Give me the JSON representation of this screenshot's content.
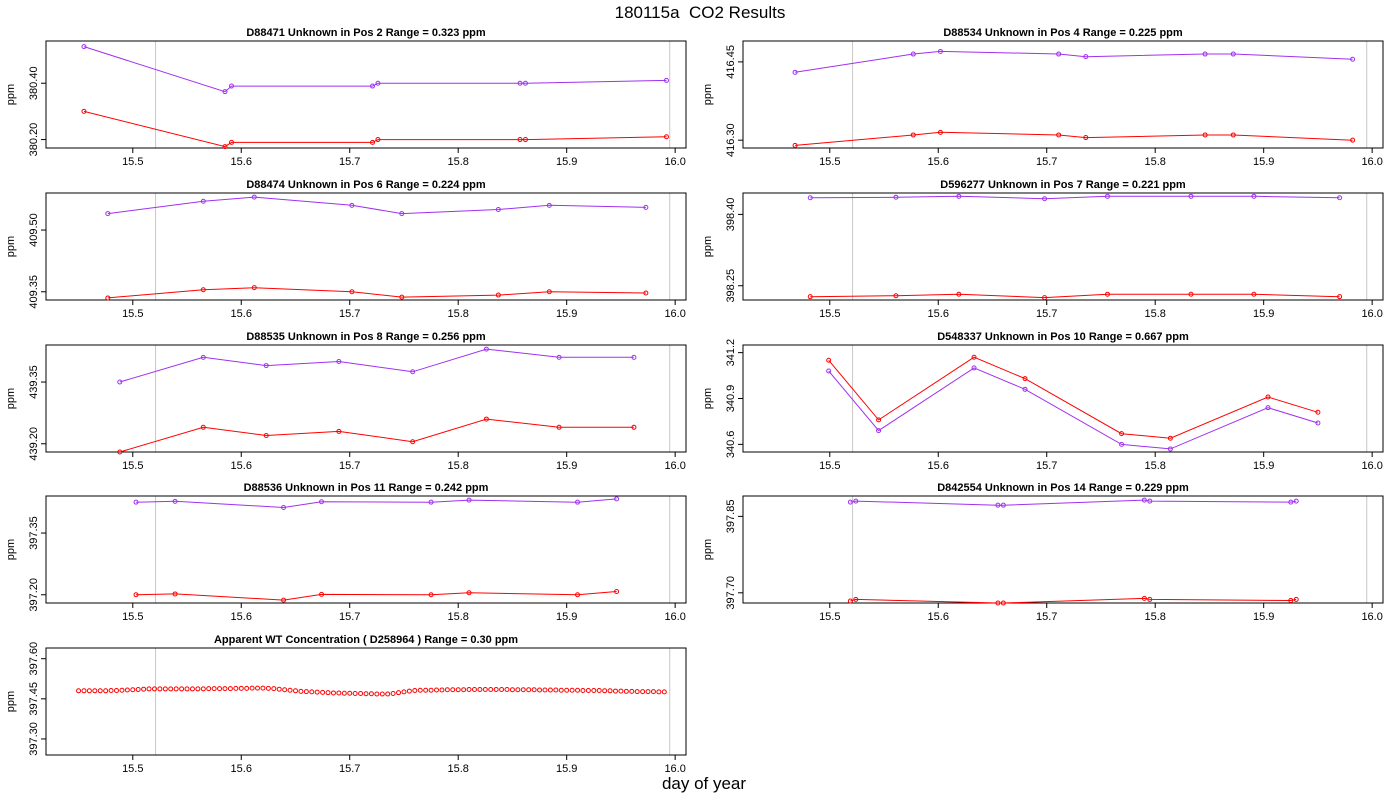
{
  "title": "180115a  CO2 Results",
  "xlabel": "day of year",
  "colors": {
    "upper": "#a030f0",
    "lower": "#ff0000",
    "ref": "#c8c8c8"
  },
  "chart_data": [
    {
      "type": "line",
      "title": "D88471    Unknown in Pos 2         Range =  0.323 ppm",
      "ylabel": "ppm",
      "xlim": [
        15.42,
        16.01
      ],
      "ylim": [
        380.17,
        380.55
      ],
      "xticks": [
        15.5,
        15.6,
        15.7,
        15.8,
        15.9,
        16.0
      ],
      "yticks": [
        380.2,
        380.4
      ],
      "ytick_labels": [
        "380.20",
        "380.40"
      ],
      "ref_lines": [
        15.521,
        15.995
      ],
      "series": [
        {
          "color": "upper",
          "x": [
            15.455,
            15.585,
            15.591,
            15.721,
            15.726,
            15.857,
            15.862,
            15.992
          ],
          "y": [
            380.53,
            380.37,
            380.39,
            380.39,
            380.4,
            380.4,
            380.4,
            380.41
          ]
        },
        {
          "color": "lower",
          "x": [
            15.455,
            15.585,
            15.591,
            15.721,
            15.726,
            15.857,
            15.862,
            15.992
          ],
          "y": [
            380.3,
            380.175,
            380.19,
            380.19,
            380.2,
            380.2,
            380.2,
            380.21
          ]
        }
      ]
    },
    {
      "type": "line",
      "title": "D88534    Unknown in Pos 4         Range =  0.225 ppm",
      "ylabel": "ppm",
      "xlim": [
        15.42,
        16.01
      ],
      "ylim": [
        416.285,
        416.49
      ],
      "xticks": [
        15.5,
        15.6,
        15.7,
        15.8,
        15.9,
        16.0
      ],
      "yticks": [
        416.3,
        416.45
      ],
      "ytick_labels": [
        "416.30",
        "416.45"
      ],
      "ref_lines": [
        15.521,
        15.995
      ],
      "series": [
        {
          "color": "upper",
          "x": [
            15.468,
            15.577,
            15.602,
            15.711,
            15.736,
            15.846,
            15.872,
            15.982
          ],
          "y": [
            416.43,
            416.465,
            416.47,
            416.465,
            416.46,
            416.465,
            416.465,
            416.455
          ]
        },
        {
          "color": "lower",
          "x": [
            15.468,
            15.577,
            15.602,
            15.711,
            15.736,
            15.846,
            15.872,
            15.982
          ],
          "y": [
            416.29,
            416.31,
            416.315,
            416.31,
            416.305,
            416.31,
            416.31,
            416.3
          ]
        }
      ]
    },
    {
      "type": "line",
      "title": "D88474    Unknown in Pos 6         Range =  0.224 ppm",
      "ylabel": "ppm",
      "xlim": [
        15.42,
        16.01
      ],
      "ylim": [
        409.33,
        409.59
      ],
      "xticks": [
        15.5,
        15.6,
        15.7,
        15.8,
        15.9,
        16.0
      ],
      "yticks": [
        409.35,
        409.5
      ],
      "ytick_labels": [
        "409.35",
        "409.50"
      ],
      "ref_lines": [
        15.521,
        15.995
      ],
      "series": [
        {
          "color": "upper",
          "x": [
            15.477,
            15.565,
            15.612,
            15.702,
            15.748,
            15.837,
            15.884,
            15.973
          ],
          "y": [
            409.54,
            409.57,
            409.58,
            409.56,
            409.54,
            409.55,
            409.56,
            409.555
          ]
        },
        {
          "color": "lower",
          "x": [
            15.477,
            15.565,
            15.612,
            15.702,
            15.748,
            15.837,
            15.884,
            15.973
          ],
          "y": [
            409.335,
            409.355,
            409.36,
            409.35,
            409.337,
            409.342,
            409.35,
            409.347
          ]
        }
      ]
    },
    {
      "type": "line",
      "title": "D596277    Unknown in Pos 7         Range =  0.221 ppm",
      "ylabel": "ppm",
      "xlim": [
        15.42,
        16.01
      ],
      "ylim": [
        398.22,
        398.445
      ],
      "xticks": [
        15.5,
        15.6,
        15.7,
        15.8,
        15.9,
        16.0
      ],
      "yticks": [
        398.25,
        398.4
      ],
      "ytick_labels": [
        "398.25",
        "398.40"
      ],
      "ref_lines": [
        15.521,
        15.995
      ],
      "series": [
        {
          "color": "upper",
          "x": [
            15.482,
            15.561,
            15.619,
            15.698,
            15.756,
            15.833,
            15.891,
            15.97
          ],
          "y": [
            398.435,
            398.436,
            398.438,
            398.433,
            398.438,
            398.438,
            398.438,
            398.435
          ]
        },
        {
          "color": "lower",
          "x": [
            15.482,
            15.561,
            15.619,
            15.698,
            15.756,
            15.833,
            15.891,
            15.97
          ],
          "y": [
            398.227,
            398.229,
            398.232,
            398.225,
            398.232,
            398.232,
            398.232,
            398.227
          ]
        }
      ]
    },
    {
      "type": "line",
      "title": "D88535    Unknown in Pos 8         Range =  0.256 ppm",
      "ylabel": "ppm",
      "xlim": [
        15.42,
        16.01
      ],
      "ylim": [
        439.18,
        439.44
      ],
      "xticks": [
        15.5,
        15.6,
        15.7,
        15.8,
        15.9,
        16.0
      ],
      "yticks": [
        439.2,
        439.35
      ],
      "ytick_labels": [
        "439.20",
        "439.35"
      ],
      "ref_lines": [
        15.521,
        15.995
      ],
      "series": [
        {
          "color": "upper",
          "x": [
            15.488,
            15.565,
            15.623,
            15.69,
            15.758,
            15.826,
            15.893,
            15.962
          ],
          "y": [
            439.35,
            439.41,
            439.39,
            439.4,
            439.375,
            439.43,
            439.41,
            439.41
          ]
        },
        {
          "color": "lower",
          "x": [
            15.488,
            15.565,
            15.623,
            15.69,
            15.758,
            15.826,
            15.893,
            15.962
          ],
          "y": [
            439.18,
            439.24,
            439.22,
            439.23,
            439.205,
            439.26,
            439.24,
            439.24
          ]
        }
      ]
    },
    {
      "type": "line",
      "title": "D548337    Unknown in Pos 10         Range =  0.667 ppm",
      "ylabel": "ppm",
      "xlim": [
        15.42,
        16.01
      ],
      "ylim": [
        340.55,
        341.25
      ],
      "xticks": [
        15.5,
        15.6,
        15.7,
        15.8,
        15.9,
        16.0
      ],
      "yticks": [
        340.6,
        340.9,
        341.2
      ],
      "ytick_labels": [
        "340.6",
        "340.9",
        "341.2"
      ],
      "ref_lines": [
        15.521,
        15.995
      ],
      "series": [
        {
          "color": "upper",
          "x": [
            15.499,
            15.545,
            15.633,
            15.68,
            15.769,
            15.814,
            15.904,
            15.95
          ],
          "y": [
            341.08,
            340.69,
            341.1,
            340.96,
            340.6,
            340.57,
            340.84,
            340.74
          ]
        },
        {
          "color": "lower",
          "x": [
            15.499,
            15.545,
            15.633,
            15.68,
            15.769,
            15.814,
            15.904,
            15.95
          ],
          "y": [
            341.15,
            340.76,
            341.17,
            341.03,
            340.67,
            340.64,
            340.91,
            340.81
          ]
        }
      ]
    },
    {
      "type": "line",
      "title": "D88536    Unknown in Pos 11         Range =  0.242 ppm",
      "ylabel": "ppm",
      "xlim": [
        15.42,
        16.01
      ],
      "ylim": [
        397.18,
        397.44
      ],
      "xticks": [
        15.5,
        15.6,
        15.7,
        15.8,
        15.9,
        16.0
      ],
      "yticks": [
        397.2,
        397.35
      ],
      "ytick_labels": [
        "397.20",
        "397.35"
      ],
      "ref_lines": [
        15.521,
        15.995
      ],
      "series": [
        {
          "color": "upper",
          "x": [
            15.503,
            15.539,
            15.639,
            15.674,
            15.775,
            15.81,
            15.91,
            15.946
          ],
          "y": [
            397.425,
            397.427,
            397.412,
            397.426,
            397.425,
            397.43,
            397.425,
            397.433
          ]
        },
        {
          "color": "lower",
          "x": [
            15.503,
            15.539,
            15.639,
            15.674,
            15.775,
            15.81,
            15.91,
            15.946
          ],
          "y": [
            397.2,
            397.202,
            397.187,
            397.201,
            397.2,
            397.205,
            397.2,
            397.208
          ]
        }
      ]
    },
    {
      "type": "line",
      "title": "D842554    Unknown in Pos 14         Range =  0.229 ppm",
      "ylabel": "ppm",
      "xlim": [
        15.42,
        16.01
      ],
      "ylim": [
        397.68,
        397.89
      ],
      "xticks": [
        15.5,
        15.6,
        15.7,
        15.8,
        15.9,
        16.0
      ],
      "yticks": [
        397.7,
        397.85
      ],
      "ytick_labels": [
        "397.70",
        "397.85"
      ],
      "ref_lines": [
        15.521,
        15.995
      ],
      "series": [
        {
          "color": "upper",
          "x": [
            15.519,
            15.524,
            15.655,
            15.66,
            15.79,
            15.795,
            15.925,
            15.93
          ],
          "y": [
            397.878,
            397.88,
            397.872,
            397.872,
            397.882,
            397.88,
            397.878,
            397.88
          ]
        },
        {
          "color": "lower",
          "x": [
            15.519,
            15.524,
            15.655,
            15.66,
            15.79,
            15.795,
            15.925,
            15.93
          ],
          "y": [
            397.684,
            397.687,
            397.68,
            397.68,
            397.689,
            397.687,
            397.685,
            397.687
          ]
        }
      ]
    },
    {
      "type": "scatter",
      "title": "Apparent WT Concentration ( D258964 )         Range = 0.30 ppm",
      "ylabel": "ppm",
      "xlim": [
        15.42,
        16.01
      ],
      "ylim": [
        397.24,
        397.64
      ],
      "xticks": [
        15.5,
        15.6,
        15.7,
        15.8,
        15.9,
        16.0
      ],
      "yticks": [
        397.3,
        397.45,
        397.6
      ],
      "ytick_labels": [
        "397.30",
        "397.45",
        "397.60"
      ],
      "ref_lines": [
        15.521,
        15.995
      ],
      "wt_series": {
        "color": "lower",
        "x_start": 15.45,
        "x_step": 0.005,
        "count": 109,
        "y": [
          397.48,
          397.48,
          397.48,
          397.48,
          397.48,
          397.48,
          397.481,
          397.481,
          397.482,
          397.483,
          397.484,
          397.485,
          397.486,
          397.487,
          397.487,
          397.487,
          397.487,
          397.487,
          397.487,
          397.487,
          397.487,
          397.487,
          397.487,
          397.487,
          397.488,
          397.488,
          397.488,
          397.488,
          397.488,
          397.489,
          397.489,
          397.489,
          397.49,
          397.49,
          397.49,
          397.489,
          397.488,
          397.486,
          397.484,
          397.482,
          397.48,
          397.478,
          397.477,
          397.476,
          397.475,
          397.474,
          397.473,
          397.472,
          397.472,
          397.471,
          397.471,
          397.47,
          397.47,
          397.469,
          397.469,
          397.468,
          397.468,
          397.468,
          397.47,
          397.473,
          397.476,
          397.479,
          397.481,
          397.482,
          397.482,
          397.482,
          397.483,
          397.483,
          397.484,
          397.484,
          397.484,
          397.484,
          397.485,
          397.485,
          397.485,
          397.485,
          397.485,
          397.485,
          397.485,
          397.485,
          397.484,
          397.484,
          397.484,
          397.484,
          397.484,
          397.483,
          397.483,
          397.483,
          397.483,
          397.482,
          397.482,
          397.482,
          397.482,
          397.481,
          397.481,
          397.481,
          397.481,
          397.48,
          397.48,
          397.479,
          397.479,
          397.478,
          397.478,
          397.477,
          397.477,
          397.477,
          397.477,
          397.476,
          397.476
        ]
      }
    }
  ]
}
